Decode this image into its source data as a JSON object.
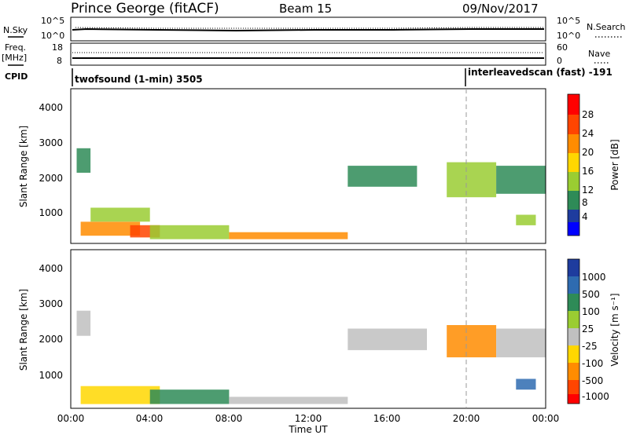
{
  "header": {
    "station": "Prince George (fitACF)",
    "beam": "Beam 15",
    "date": "09/Nov/2017"
  },
  "summary": {
    "nsky_label": "N.Sky",
    "nsearch_label": "N.Search",
    "sky_ticks": [
      "10^5",
      "10^0"
    ],
    "search_ticks": [
      "10^5",
      "10^0"
    ],
    "freq_label_1": "Freq.",
    "freq_label_2": "[MHz]",
    "freq_ticks": [
      "18",
      "8"
    ],
    "nave_label": "Nave",
    "nave_ticks": [
      "60",
      "0"
    ],
    "cpid_label": "CPID",
    "cpid_segments": [
      {
        "text": "twofsound (1-min) 3505",
        "start": 0.0
      },
      {
        "text": "interleavedscan (fast) -191",
        "start": 20.0
      }
    ]
  },
  "panels": {
    "power": {
      "ylabel": "Slant Range [km]",
      "colorbar_label": "Power [dB]",
      "colorbar_ticks": [
        "28",
        "24",
        "20",
        "16",
        "12",
        "8",
        "4"
      ]
    },
    "velocity": {
      "ylabel": "Slant Range [km]",
      "colorbar_label": "Velocity [m s⁻¹]",
      "colorbar_ticks": [
        "1000",
        "500",
        "100",
        "25",
        "-25",
        "-100",
        "-500",
        "-1000"
      ]
    }
  },
  "xaxis": {
    "label": "Time UT",
    "ticks": [
      "00:00",
      "04:00",
      "08:00",
      "12:00",
      "16:00",
      "20:00",
      "00:00"
    ]
  },
  "yaxis_ticks": [
    "4000",
    "3000",
    "2000",
    "1000"
  ],
  "colors": {
    "power_scale": [
      "#ff0000",
      "#ff4500",
      "#ff8c00",
      "#ffd700",
      "#9acd32",
      "#2e8b57",
      "#1e3c9e",
      "#0000ff"
    ],
    "velocity_scale": [
      "#1e3c9e",
      "#2e6bb0",
      "#2e8b57",
      "#9acd32",
      "#c0c0c0",
      "#ffd700",
      "#ff8c00",
      "#ff4500",
      "#ff0000"
    ]
  },
  "chart_data": [
    {
      "type": "heatmap",
      "title": "Prince George (fitACF) Beam 15 09/Nov/2017",
      "xlabel": "Time UT",
      "ylabel": "Slant Range [km]",
      "xlim": [
        0,
        24
      ],
      "ylim": [
        180,
        4600
      ],
      "colorbar": "Power [dB]",
      "clim": [
        0,
        30
      ],
      "series": [
        {
          "x": [
            0.3,
            1.0
          ],
          "y": [
            2200,
            2900
          ],
          "value": 10
        },
        {
          "x": [
            0.5,
            3.5
          ],
          "y": [
            400,
            800
          ],
          "value": 22
        },
        {
          "x": [
            1.0,
            4.0
          ],
          "y": [
            800,
            1200
          ],
          "value": 12
        },
        {
          "x": [
            3.0,
            4.5
          ],
          "y": [
            350,
            700
          ],
          "value": 24
        },
        {
          "x": [
            4.0,
            8.0
          ],
          "y": [
            300,
            700
          ],
          "value": 14
        },
        {
          "x": [
            8.0,
            14.0
          ],
          "y": [
            300,
            500
          ],
          "value": 20
        },
        {
          "x": [
            14.0,
            17.5
          ],
          "y": [
            1800,
            2400
          ],
          "value": 8
        },
        {
          "x": [
            19.0,
            21.5
          ],
          "y": [
            1500,
            2500
          ],
          "value": 14
        },
        {
          "x": [
            21.5,
            24.0
          ],
          "y": [
            1600,
            2400
          ],
          "value": 10
        },
        {
          "x": [
            22.5,
            23.5
          ],
          "y": [
            700,
            1000
          ],
          "value": 12
        }
      ]
    },
    {
      "type": "heatmap",
      "title": "",
      "xlabel": "Time UT",
      "ylabel": "Slant Range [km]",
      "xlim": [
        0,
        24
      ],
      "ylim": [
        180,
        4600
      ],
      "colorbar": "Velocity [m s⁻¹]",
      "clim": [
        -1000,
        1000
      ],
      "series": [
        {
          "x": [
            0.3,
            1.0
          ],
          "y": [
            2200,
            2900
          ],
          "value": 0
        },
        {
          "x": [
            0.5,
            4.5
          ],
          "y": [
            300,
            800
          ],
          "value": -60
        },
        {
          "x": [
            4.0,
            8.0
          ],
          "y": [
            300,
            700
          ],
          "value": 50
        },
        {
          "x": [
            8.0,
            14.0
          ],
          "y": [
            300,
            500
          ],
          "value": -10
        },
        {
          "x": [
            14.0,
            18.0
          ],
          "y": [
            1800,
            2400
          ],
          "value": 0
        },
        {
          "x": [
            19.0,
            21.5
          ],
          "y": [
            1600,
            2500
          ],
          "value": -300
        },
        {
          "x": [
            21.5,
            24.0
          ],
          "y": [
            1600,
            2400
          ],
          "value": 0
        },
        {
          "x": [
            22.5,
            23.5
          ],
          "y": [
            700,
            1000
          ],
          "value": 150
        }
      ]
    }
  ]
}
